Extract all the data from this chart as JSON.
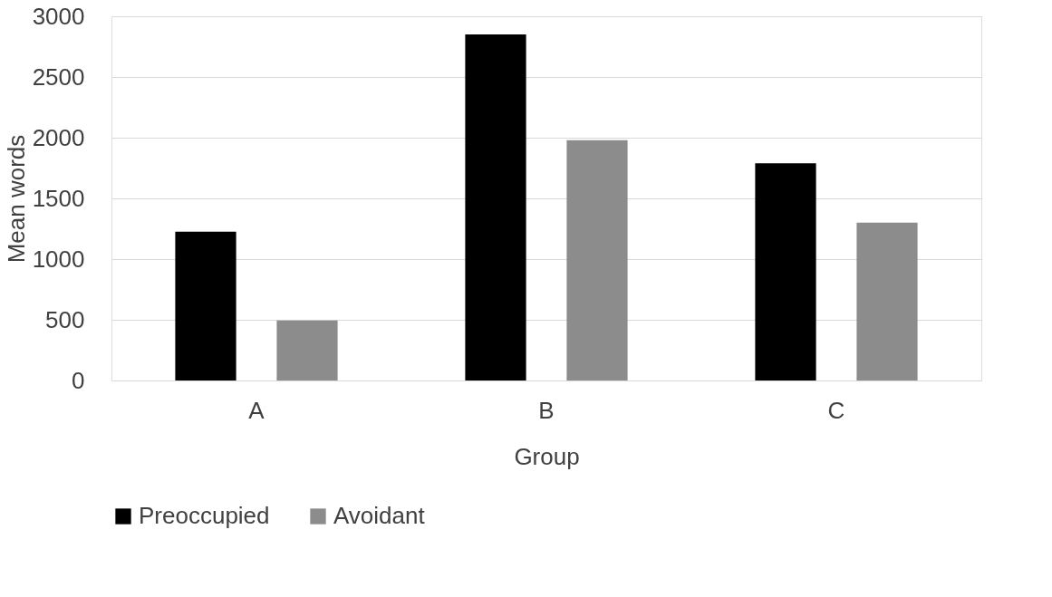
{
  "chart_data": {
    "type": "bar",
    "xlabel": "Group",
    "ylabel": "Mean words",
    "categories": [
      "A",
      "B",
      "C"
    ],
    "series": [
      {
        "name": "Preoccupied",
        "color": "#000000",
        "values": [
          1225,
          2850,
          1790
        ]
      },
      {
        "name": "Avoidant",
        "color": "#8c8c8c",
        "values": [
          495,
          1980,
          1300
        ]
      }
    ],
    "ylim": [
      0,
      3000
    ],
    "yticks": [
      0,
      500,
      1000,
      1500,
      2000,
      2500,
      3000
    ],
    "grid": "y",
    "legend": "bottom"
  }
}
